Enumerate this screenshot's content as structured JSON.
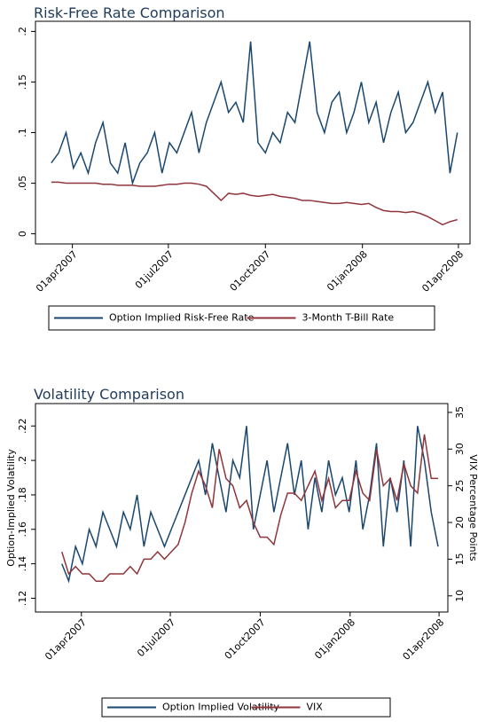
{
  "chart_data": [
    {
      "type": "line",
      "title": "Risk-Free Rate Comparison",
      "x": [
        "2007-03-12",
        "2007-03-19",
        "2007-03-26",
        "2007-04-02",
        "2007-04-09",
        "2007-04-16",
        "2007-04-23",
        "2007-04-30",
        "2007-05-07",
        "2007-05-14",
        "2007-05-21",
        "2007-05-28",
        "2007-06-04",
        "2007-06-11",
        "2007-06-18",
        "2007-06-25",
        "2007-07-02",
        "2007-07-09",
        "2007-07-16",
        "2007-07-23",
        "2007-07-30",
        "2007-08-06",
        "2007-08-13",
        "2007-08-20",
        "2007-08-27",
        "2007-09-03",
        "2007-09-10",
        "2007-09-17",
        "2007-09-24",
        "2007-10-01",
        "2007-10-08",
        "2007-10-15",
        "2007-10-22",
        "2007-10-29",
        "2007-11-05",
        "2007-11-12",
        "2007-11-19",
        "2007-11-26",
        "2007-12-03",
        "2007-12-10",
        "2007-12-17",
        "2007-12-24",
        "2007-12-31",
        "2008-01-07",
        "2008-01-14",
        "2008-01-21",
        "2008-01-28",
        "2008-02-04",
        "2008-02-11",
        "2008-02-18",
        "2008-02-25",
        "2008-03-03",
        "2008-03-10",
        "2008-03-17",
        "2008-03-24",
        "2008-03-31"
      ],
      "series": [
        {
          "name": "Option Implied Risk-Free Rate",
          "color": "#1a476f",
          "values": [
            0.07,
            0.08,
            0.1,
            0.065,
            0.08,
            0.06,
            0.09,
            0.11,
            0.07,
            0.06,
            0.09,
            0.05,
            0.07,
            0.08,
            0.1,
            0.06,
            0.09,
            0.08,
            0.1,
            0.12,
            0.08,
            0.11,
            0.13,
            0.15,
            0.12,
            0.13,
            0.11,
            0.19,
            0.09,
            0.08,
            0.1,
            0.09,
            0.12,
            0.11,
            0.15,
            0.19,
            0.12,
            0.1,
            0.13,
            0.14,
            0.1,
            0.12,
            0.15,
            0.11,
            0.13,
            0.09,
            0.12,
            0.14,
            0.1,
            0.11,
            0.13,
            0.15,
            0.12,
            0.14,
            0.06,
            0.1
          ]
        },
        {
          "name": "3-Month T-Bill Rate",
          "color": "#90353b",
          "values": [
            0.051,
            0.051,
            0.05,
            0.05,
            0.05,
            0.05,
            0.05,
            0.049,
            0.049,
            0.048,
            0.048,
            0.048,
            0.047,
            0.047,
            0.047,
            0.048,
            0.049,
            0.049,
            0.05,
            0.05,
            0.049,
            0.047,
            0.04,
            0.033,
            0.04,
            0.039,
            0.04,
            0.038,
            0.037,
            0.038,
            0.039,
            0.037,
            0.036,
            0.035,
            0.033,
            0.033,
            0.032,
            0.031,
            0.03,
            0.03,
            0.031,
            0.03,
            0.029,
            0.03,
            0.026,
            0.023,
            0.022,
            0.022,
            0.021,
            0.022,
            0.02,
            0.017,
            0.013,
            0.009,
            0.012,
            0.014
          ]
        }
      ],
      "xlim": [
        "2007-02-25",
        "2008-04-12"
      ],
      "xticks": [
        {
          "value": "2007-04-01",
          "label": "01apr2007"
        },
        {
          "value": "2007-07-01",
          "label": "01jul2007"
        },
        {
          "value": "2007-10-01",
          "label": "01oct2007"
        },
        {
          "value": "2008-01-01",
          "label": "01jan2008"
        },
        {
          "value": "2008-04-01",
          "label": "01apr2008"
        }
      ],
      "ylim": [
        -0.01,
        0.21
      ],
      "yticks": [
        0,
        {
          "value": 0.05,
          "label": ".05"
        },
        {
          "value": 0.1,
          "label": ".1"
        },
        {
          "value": 0.15,
          "label": ".15"
        },
        {
          "value": 0.2,
          "label": ".2"
        }
      ]
    },
    {
      "type": "line",
      "title": "Volatility Comparison",
      "ylabel": "Option-Implied Volatility",
      "y2label": "VIX Percentage Points",
      "x": [
        "2007-03-12",
        "2007-03-19",
        "2007-03-26",
        "2007-04-02",
        "2007-04-09",
        "2007-04-16",
        "2007-04-23",
        "2007-04-30",
        "2007-05-07",
        "2007-05-14",
        "2007-05-21",
        "2007-05-28",
        "2007-06-04",
        "2007-06-11",
        "2007-06-18",
        "2007-06-25",
        "2007-07-02",
        "2007-07-09",
        "2007-07-16",
        "2007-07-23",
        "2007-07-30",
        "2007-08-06",
        "2007-08-13",
        "2007-08-20",
        "2007-08-27",
        "2007-09-03",
        "2007-09-10",
        "2007-09-17",
        "2007-09-24",
        "2007-10-01",
        "2007-10-08",
        "2007-10-15",
        "2007-10-22",
        "2007-10-29",
        "2007-11-05",
        "2007-11-12",
        "2007-11-19",
        "2007-11-26",
        "2007-12-03",
        "2007-12-10",
        "2007-12-17",
        "2007-12-24",
        "2007-12-31",
        "2008-01-07",
        "2008-01-14",
        "2008-01-21",
        "2008-01-28",
        "2008-02-04",
        "2008-02-11",
        "2008-02-18",
        "2008-02-25",
        "2008-03-03",
        "2008-03-10",
        "2008-03-17",
        "2008-03-24",
        "2008-03-31"
      ],
      "series": [
        {
          "name": "Option Implied Volatility",
          "color": "#1a476f",
          "values": [
            0.14,
            0.13,
            0.15,
            0.14,
            0.16,
            0.15,
            0.17,
            0.16,
            0.15,
            0.17,
            0.16,
            0.18,
            0.15,
            0.17,
            0.16,
            0.15,
            0.16,
            0.17,
            0.18,
            0.19,
            0.2,
            0.18,
            0.21,
            0.19,
            0.17,
            0.2,
            0.19,
            0.22,
            0.16,
            0.18,
            0.2,
            0.17,
            0.19,
            0.21,
            0.18,
            0.2,
            0.16,
            0.19,
            0.17,
            0.2,
            0.18,
            0.19,
            0.17,
            0.2,
            0.16,
            0.18,
            0.21,
            0.15,
            0.19,
            0.17,
            0.2,
            0.15,
            0.22,
            0.2,
            0.17,
            0.15
          ]
        },
        {
          "name": "VIX",
          "color": "#90353b",
          "axis": "y2",
          "values": [
            16,
            13,
            14,
            13,
            13,
            12,
            12,
            13,
            13,
            13,
            14,
            13,
            15,
            15,
            16,
            15,
            16,
            17,
            20,
            24,
            27,
            25,
            22,
            30,
            26,
            25,
            22,
            23,
            20,
            18,
            18,
            17,
            21,
            24,
            24,
            23,
            25,
            27,
            23,
            26,
            22,
            23,
            23,
            27,
            24,
            23,
            30,
            25,
            26,
            23,
            28,
            25,
            24,
            32,
            26,
            26
          ]
        }
      ],
      "xlim": [
        "2007-02-13",
        "2008-04-10"
      ],
      "xticks": [
        {
          "value": "2007-04-01",
          "label": "01apr2007"
        },
        {
          "value": "2007-07-01",
          "label": "01jul2007"
        },
        {
          "value": "2007-10-01",
          "label": "01oct2007"
        },
        {
          "value": "2008-01-01",
          "label": "01jan2008"
        },
        {
          "value": "2008-04-01",
          "label": "01apr2008"
        }
      ],
      "ylim": [
        0.112,
        0.233
      ],
      "yticks": [
        {
          "value": 0.12,
          "label": ".12"
        },
        {
          "value": 0.14,
          "label": ".14"
        },
        {
          "value": 0.16,
          "label": ".16"
        },
        {
          "value": 0.18,
          "label": ".18"
        },
        {
          "value": 0.2,
          "label": ".2"
        },
        {
          "value": 0.22,
          "label": ".22"
        }
      ],
      "y2lim": [
        7.8,
        36.2
      ],
      "y2ticks": [
        10,
        15,
        20,
        25,
        30,
        35
      ]
    }
  ]
}
